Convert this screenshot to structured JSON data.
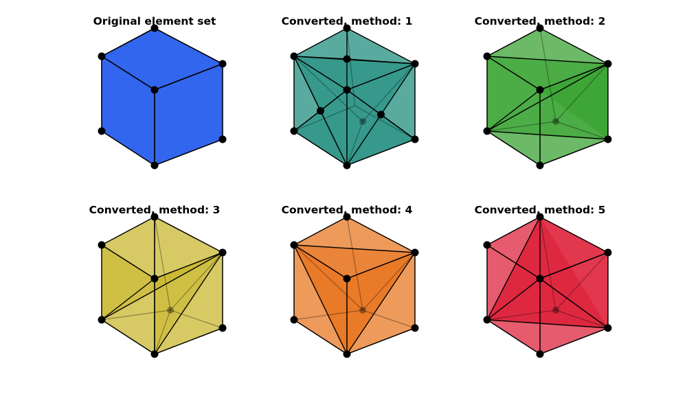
{
  "panels": [
    {
      "title": "Original element set",
      "fill": "#3366ee",
      "kind": "original"
    },
    {
      "title": "Converted, method: 1",
      "fill": "#1a8a7a",
      "kind": "method1"
    },
    {
      "title": "Converted, method: 2",
      "fill": "#33a02c",
      "kind": "method2"
    },
    {
      "title": "Converted, method: 3",
      "fill": "#c8b62a",
      "kind": "method3"
    },
    {
      "title": "Converted, method: 4",
      "fill": "#e8731c",
      "kind": "method4"
    },
    {
      "title": "Converted, method: 5",
      "fill": "#dc1c34",
      "kind": "method5"
    }
  ]
}
